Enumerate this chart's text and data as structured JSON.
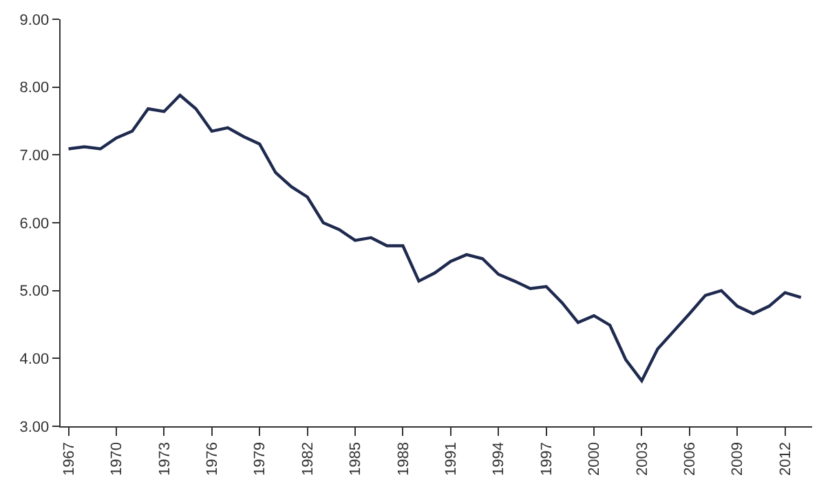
{
  "chart_data": {
    "type": "line",
    "categories": [
      "1967",
      null,
      null,
      "1970",
      null,
      null,
      "1973",
      null,
      null,
      "1976",
      null,
      null,
      "1979",
      null,
      null,
      "1982",
      null,
      null,
      "1985",
      null,
      null,
      "1988",
      null,
      null,
      "1991",
      null,
      null,
      "1994",
      null,
      null,
      "1997",
      null,
      null,
      "2000",
      null,
      null,
      "2003",
      null,
      null,
      "2006",
      null,
      null,
      "2009",
      null,
      null,
      "2012",
      null
    ],
    "series": [
      {
        "color": "#1f2a4f",
        "values": [
          7.09,
          7.12,
          7.09,
          7.25,
          7.35,
          7.68,
          7.64,
          7.88,
          7.68,
          7.35,
          7.4,
          7.27,
          7.16,
          6.74,
          6.53,
          6.38,
          6.0,
          5.9,
          5.74,
          5.78,
          5.66,
          5.66,
          5.14,
          5.26,
          5.43,
          5.53,
          5.47,
          5.24,
          5.14,
          5.03,
          5.06,
          4.82,
          4.53,
          4.63,
          4.49,
          3.98,
          3.67,
          4.14,
          4.4,
          4.66,
          4.93,
          5.0,
          4.77,
          4.66,
          4.77,
          4.97,
          4.9
        ]
      }
    ],
    "ylim": [
      3,
      9
    ],
    "yticks": [
      {
        "value": 3,
        "label": "3.00"
      },
      {
        "value": 4,
        "label": "4.00"
      },
      {
        "value": 5,
        "label": "5.00"
      },
      {
        "value": 6,
        "label": "6.00"
      },
      {
        "value": 7,
        "label": "7.00"
      },
      {
        "value": 8,
        "label": "8.00"
      },
      {
        "value": 9,
        "label": "9.00"
      }
    ],
    "marker": "none",
    "line_style": "solid"
  }
}
